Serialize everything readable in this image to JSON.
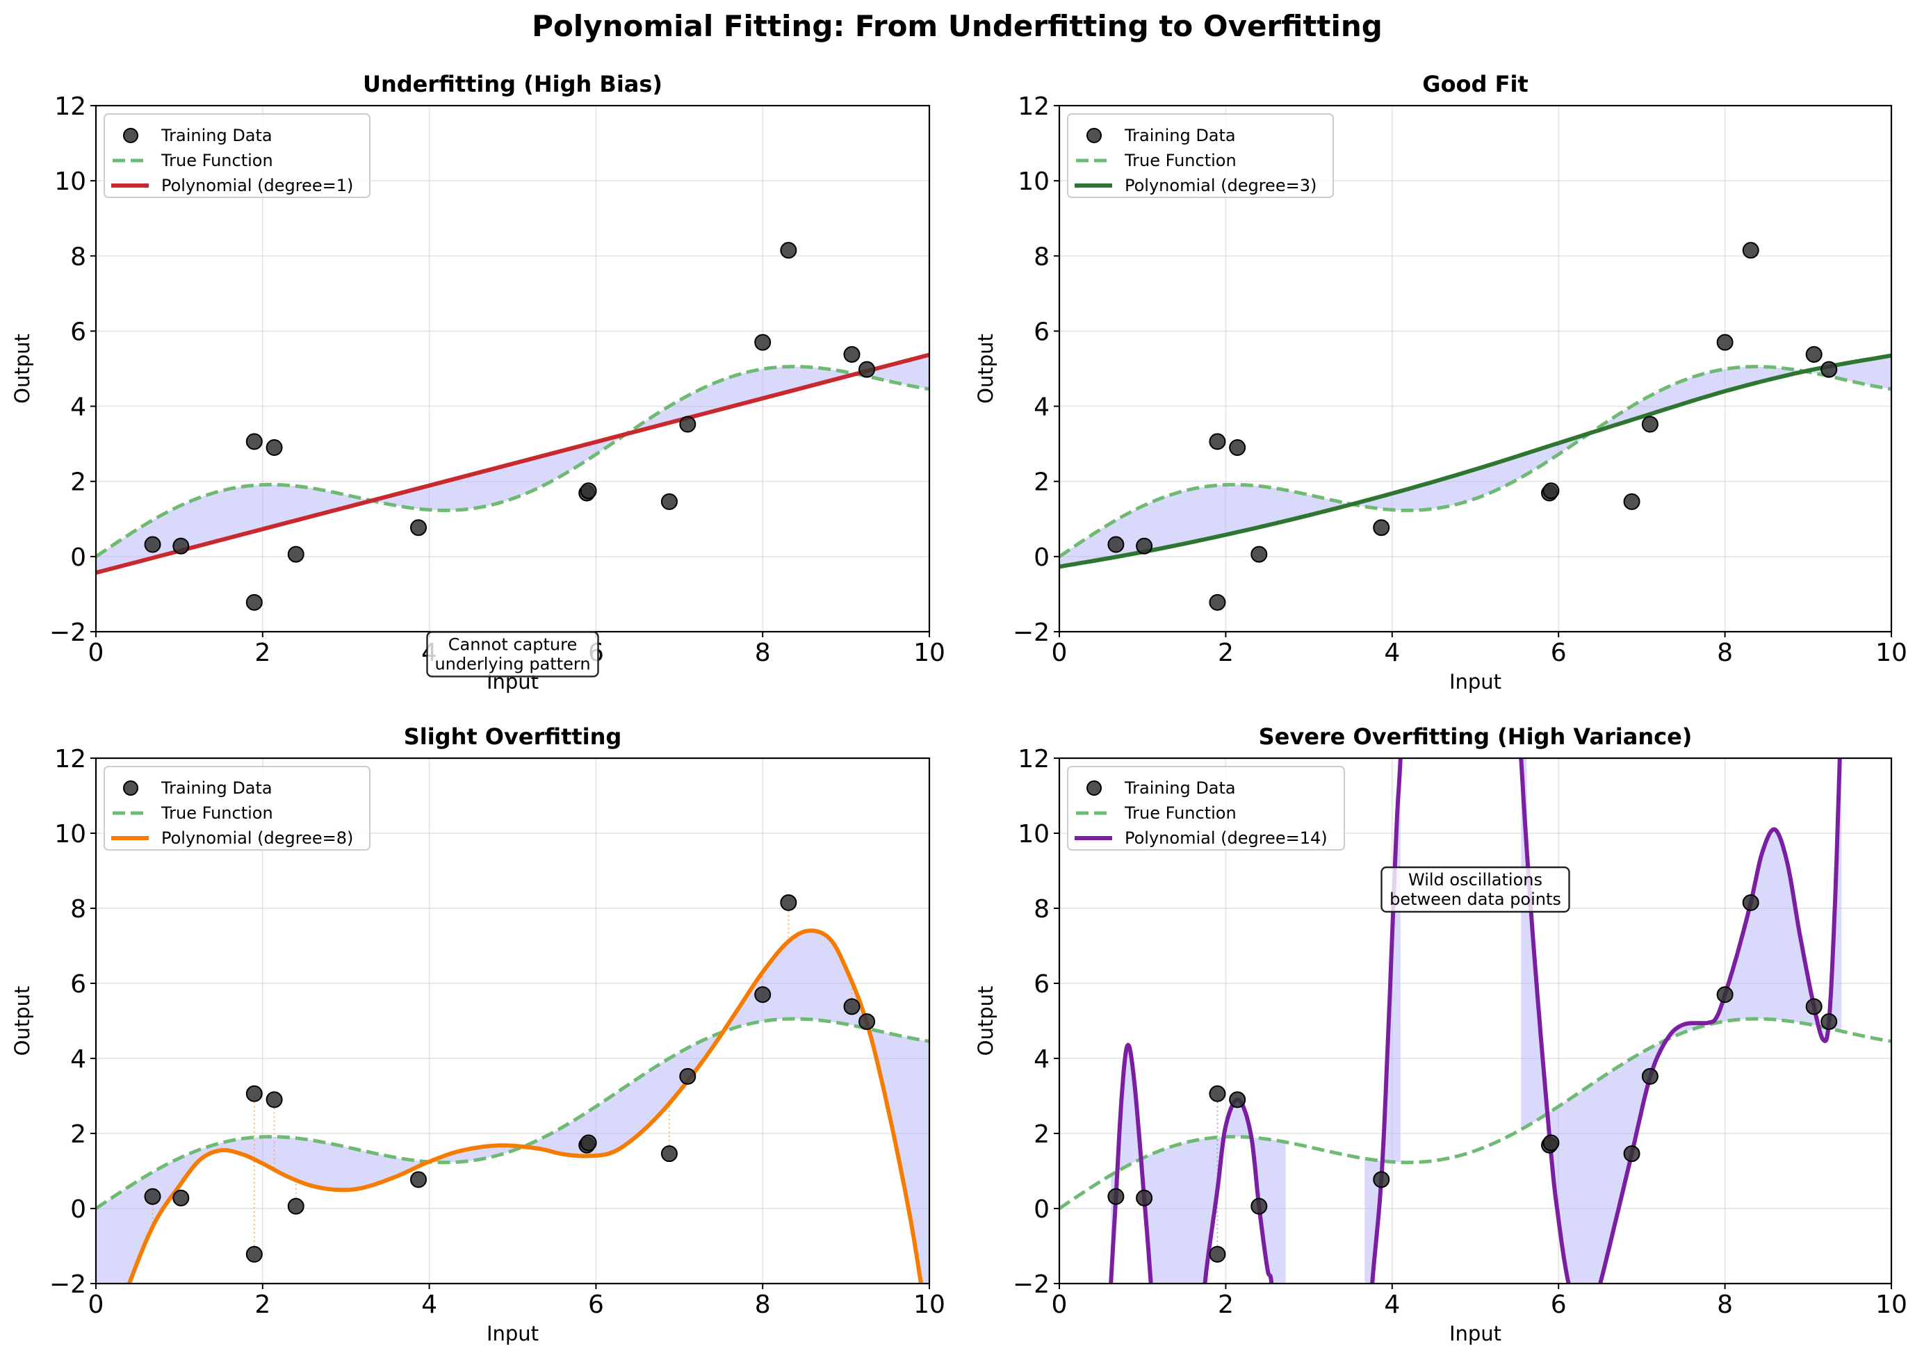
{
  "figure": {
    "title": "Polynomial Fitting: From Underfitting to Overfitting"
  },
  "colors": {
    "training_point": "#333333",
    "true_function": "#6fba73",
    "fill": "#b3b3f7",
    "residual_degree8": "#f4a460",
    "residual_degree14": "#b884d6"
  },
  "chart_data": [
    {
      "type": "scatter",
      "title": "Underfitting (High Bias)",
      "xlabel": "Input",
      "ylabel": "Output",
      "xlim": [
        0,
        10
      ],
      "ylim": [
        -2,
        12
      ],
      "xticks": [
        "0",
        "2",
        "4",
        "6",
        "8",
        "10"
      ],
      "yticks": [
        "−2",
        "0",
        "2",
        "4",
        "6",
        "8",
        "10",
        "12"
      ],
      "grid": true,
      "legend_position": "top-left",
      "legend": [
        "Training Data",
        "True Function",
        "Polynomial (degree=1)"
      ],
      "degree": 1,
      "fit_color": "#c9282d",
      "annotation": "Cannot capture\nunderlying pattern",
      "annotation_anchor": [
        5,
        -2.6
      ],
      "residual_lines": false,
      "fit_curve": [
        [
          0,
          -0.43
        ],
        [
          10,
          5.37
        ]
      ],
      "fill_ranges": [
        [
          0,
          10
        ]
      ]
    },
    {
      "type": "scatter",
      "title": "Good Fit",
      "xlabel": "Input",
      "ylabel": "Output",
      "xlim": [
        0,
        10
      ],
      "ylim": [
        -2,
        12
      ],
      "xticks": [
        "0",
        "2",
        "4",
        "6",
        "8",
        "10"
      ],
      "yticks": [
        "−2",
        "0",
        "2",
        "4",
        "6",
        "8",
        "10",
        "12"
      ],
      "grid": true,
      "legend_position": "top-left",
      "legend": [
        "Training Data",
        "True Function",
        "Polynomial (degree=3)"
      ],
      "degree": 3,
      "fit_color": "#2e7532",
      "annotation": "",
      "residual_lines": false,
      "fit_curve": [
        [
          0,
          -0.27
        ],
        [
          1,
          0.12
        ],
        [
          2,
          0.58
        ],
        [
          3,
          1.1
        ],
        [
          4,
          1.68
        ],
        [
          5,
          2.32
        ],
        [
          6,
          3.02
        ],
        [
          7,
          3.72
        ],
        [
          8,
          4.4
        ],
        [
          9,
          4.95
        ],
        [
          10,
          5.35
        ]
      ],
      "fill_ranges": [
        [
          0,
          10
        ]
      ]
    },
    {
      "type": "scatter",
      "title": "Slight Overfitting",
      "xlabel": "Input",
      "ylabel": "Output",
      "xlim": [
        0,
        10
      ],
      "ylim": [
        -2,
        12
      ],
      "xticks": [
        "0",
        "2",
        "4",
        "6",
        "8",
        "10"
      ],
      "yticks": [
        "−2",
        "0",
        "2",
        "4",
        "6",
        "8",
        "10",
        "12"
      ],
      "grid": true,
      "legend_position": "top-left",
      "legend": [
        "Training Data",
        "True Function",
        "Polynomial (degree=8)"
      ],
      "degree": 8,
      "fit_color": "#f57c00",
      "annotation": "",
      "residual_lines": true,
      "fit_curve": [
        [
          0,
          -4.5
        ],
        [
          0.4,
          -2.0
        ],
        [
          0.7,
          -0.4
        ],
        [
          1.0,
          0.6
        ],
        [
          1.25,
          1.3
        ],
        [
          1.5,
          1.55
        ],
        [
          1.75,
          1.45
        ],
        [
          2.0,
          1.2
        ],
        [
          2.3,
          0.85
        ],
        [
          2.6,
          0.6
        ],
        [
          2.9,
          0.5
        ],
        [
          3.2,
          0.55
        ],
        [
          3.6,
          0.85
        ],
        [
          4.0,
          1.25
        ],
        [
          4.4,
          1.55
        ],
        [
          4.85,
          1.68
        ],
        [
          5.3,
          1.6
        ],
        [
          5.6,
          1.45
        ],
        [
          5.9,
          1.4
        ],
        [
          6.2,
          1.5
        ],
        [
          6.5,
          1.95
        ],
        [
          6.8,
          2.6
        ],
        [
          7.1,
          3.4
        ],
        [
          7.4,
          4.3
        ],
        [
          7.7,
          5.3
        ],
        [
          8.0,
          6.3
        ],
        [
          8.3,
          7.1
        ],
        [
          8.55,
          7.4
        ],
        [
          8.8,
          7.2
        ],
        [
          9.0,
          6.4
        ],
        [
          9.25,
          4.95
        ],
        [
          9.5,
          2.7
        ],
        [
          9.75,
          0.0
        ],
        [
          9.9,
          -2.0
        ],
        [
          10.0,
          -3.5
        ]
      ],
      "fill_ranges": [
        [
          0,
          10
        ]
      ]
    },
    {
      "type": "scatter",
      "title": "Severe Overfitting (High Variance)",
      "xlabel": "Input",
      "ylabel": "Output",
      "xlim": [
        0,
        10
      ],
      "ylim": [
        -2,
        12
      ],
      "xticks": [
        "0",
        "2",
        "4",
        "6",
        "8",
        "10"
      ],
      "yticks": [
        "−2",
        "0",
        "2",
        "4",
        "6",
        "8",
        "10",
        "12"
      ],
      "grid": true,
      "legend_position": "top-left",
      "legend": [
        "Training Data",
        "True Function",
        "Polynomial (degree=14)"
      ],
      "degree": 14,
      "fit_color": "#7b1fa2",
      "annotation": "Wild oscillations\nbetween data points",
      "annotation_anchor": [
        5,
        8.5
      ],
      "residual_lines": true,
      "fit_curve": [
        [
          0.6,
          -3.0
        ],
        [
          0.62,
          -2.0
        ],
        [
          0.68,
          0.3
        ],
        [
          0.75,
          3.0
        ],
        [
          0.82,
          4.35
        ],
        [
          0.9,
          3.4
        ],
        [
          1.02,
          0.28
        ],
        [
          1.1,
          -2.0
        ],
        [
          1.15,
          -4.0
        ],
        [
          1.7,
          -4.0
        ],
        [
          1.75,
          -2.0
        ],
        [
          1.9,
          0.5
        ],
        [
          2.0,
          2.2
        ],
        [
          2.15,
          2.9
        ],
        [
          2.3,
          2.0
        ],
        [
          2.4,
          0.06
        ],
        [
          2.5,
          -1.6
        ],
        [
          2.55,
          -2.0
        ],
        [
          2.6,
          -4.0
        ],
        [
          3.7,
          -4.0
        ],
        [
          3.76,
          -2.0
        ],
        [
          3.87,
          0.77
        ],
        [
          3.95,
          4.5
        ],
        [
          4.05,
          10.0
        ],
        [
          4.1,
          12.0
        ],
        [
          4.15,
          15.0
        ],
        [
          5.5,
          15.0
        ],
        [
          5.55,
          12.0
        ],
        [
          5.7,
          7.0
        ],
        [
          5.9,
          1.7
        ],
        [
          6.0,
          -0.3
        ],
        [
          6.12,
          -2.0
        ],
        [
          6.3,
          -3.5
        ],
        [
          6.5,
          -2.0
        ],
        [
          6.7,
          -0.2
        ],
        [
          6.88,
          1.46
        ],
        [
          7.1,
          3.5
        ],
        [
          7.3,
          4.5
        ],
        [
          7.5,
          4.9
        ],
        [
          7.8,
          4.95
        ],
        [
          7.9,
          5.1
        ],
        [
          8.0,
          5.7
        ],
        [
          8.15,
          6.8
        ],
        [
          8.31,
          8.15
        ],
        [
          8.45,
          9.5
        ],
        [
          8.6,
          10.1
        ],
        [
          8.75,
          9.2
        ],
        [
          8.9,
          7.3
        ],
        [
          9.07,
          5.38
        ],
        [
          9.18,
          4.5
        ],
        [
          9.25,
          4.98
        ],
        [
          9.32,
          8.0
        ],
        [
          9.38,
          12.0
        ],
        [
          9.42,
          15.0
        ]
      ],
      "fill_ranges": [
        [
          0.62,
          2.72
        ],
        [
          3.67,
          4.1
        ],
        [
          5.55,
          9.4
        ]
      ]
    }
  ],
  "training_data": {
    "x": [
      0.68,
      1.02,
      1.9,
      1.9,
      2.14,
      2.4,
      3.87,
      5.89,
      5.91,
      6.88,
      7.1,
      8.0,
      8.31,
      9.07,
      9.25
    ],
    "y": [
      0.32,
      0.28,
      3.06,
      -1.22,
      2.9,
      0.06,
      0.77,
      1.69,
      1.75,
      1.46,
      3.52,
      5.7,
      8.15,
      5.38,
      4.98
    ]
  },
  "true_function": {
    "expression": "0.5*x + sin(x)",
    "samples_x": [
      0,
      0.5,
      1,
      1.5,
      2,
      2.5,
      3,
      3.5,
      4,
      4.5,
      5,
      5.5,
      6,
      6.5,
      7,
      7.5,
      8,
      8.5,
      9,
      9.5,
      10
    ],
    "samples_y": [
      0,
      0.73,
      1.34,
      1.75,
      1.91,
      1.85,
      1.64,
      1.4,
      1.24,
      1.27,
      1.54,
      2.04,
      2.72,
      3.47,
      4.16,
      4.69,
      4.99,
      5.05,
      4.91,
      4.68,
      4.46
    ]
  }
}
